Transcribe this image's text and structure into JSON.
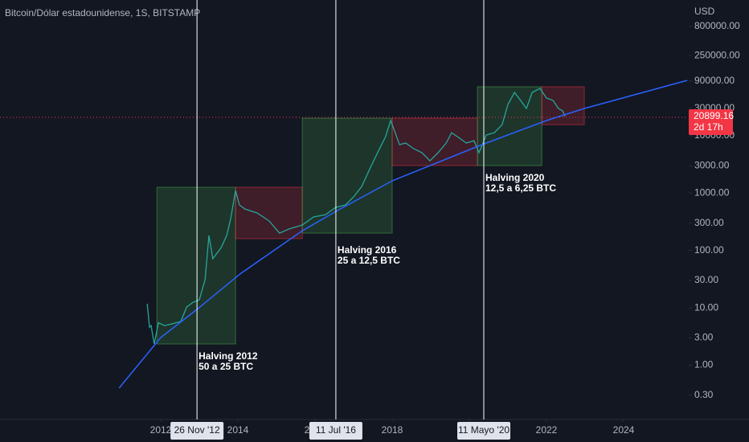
{
  "chart_data": {
    "type": "line",
    "title": "Bitcoin/Dólar estadounidense, 1S, BITSTAMP",
    "y_axis_label": "USD",
    "log_scale": true,
    "xlim": [
      2007.833,
      2025.646
    ],
    "ylim": [
      0.121,
      2320000
    ],
    "xticks": [
      2012,
      2014,
      2016,
      2018,
      2020,
      2022,
      2024
    ],
    "yticks": [
      {
        "value": 800000,
        "label": "800000.00"
      },
      {
        "value": 250000,
        "label": "250000.00"
      },
      {
        "value": 90000,
        "label": "90000.00"
      },
      {
        "value": 30000,
        "label": "30000.00"
      },
      {
        "value": 10000,
        "label": "10000.00"
      },
      {
        "value": 3000,
        "label": "3000.00"
      },
      {
        "value": 1000,
        "label": "1000.00"
      },
      {
        "value": 300,
        "label": "300.00"
      },
      {
        "value": 100,
        "label": "100.00"
      },
      {
        "value": 30,
        "label": "30.00"
      },
      {
        "value": 10,
        "label": "10.00"
      },
      {
        "value": 3,
        "label": "3.00"
      },
      {
        "value": 1,
        "label": "1.00"
      },
      {
        "value": 0.3,
        "label": "0.30"
      }
    ],
    "series": [
      {
        "color": "#26a69a",
        "x": [
          2011.65,
          2011.71,
          2011.75,
          2011.83,
          2011.94,
          2012.1,
          2012.31,
          2012.52,
          2012.67,
          2012.83,
          2013.0,
          2013.15,
          2013.25,
          2013.35,
          2013.56,
          2013.71,
          2013.81,
          2013.94,
          2014.04,
          2014.19,
          2014.5,
          2014.81,
          2015.08,
          2015.33,
          2015.67,
          2015.96,
          2016.27,
          2016.54,
          2016.79,
          2017.0,
          2017.21,
          2017.42,
          2017.62,
          2017.83,
          2017.96,
          2018.04,
          2018.19,
          2018.35,
          2018.56,
          2018.77,
          2018.98,
          2019.19,
          2019.4,
          2019.54,
          2019.75,
          2019.92,
          2020.12,
          2020.25,
          2020.44,
          2020.65,
          2020.85,
          2021.0,
          2021.17,
          2021.33,
          2021.48,
          2021.63,
          2021.83,
          2022.0,
          2022.17,
          2022.31,
          2022.42,
          2022.48
        ],
        "values": [
          11.8,
          4.6,
          4.9,
          2.35,
          5.5,
          4.9,
          5.3,
          5.8,
          10.3,
          12.4,
          13.8,
          31,
          183,
          72,
          110,
          183,
          350,
          1110,
          622,
          525,
          451,
          327,
          201,
          237,
          278,
          384,
          420,
          565,
          622,
          859,
          1306,
          2650,
          5060,
          9640,
          18400,
          13300,
          6980,
          7450,
          5940,
          5060,
          3660,
          5060,
          7450,
          11300,
          9040,
          7450,
          8200,
          5060,
          10300,
          11300,
          15600,
          35000,
          56900,
          41200,
          29800,
          56900,
          66800,
          45400,
          41200,
          29800,
          27000,
          21600
        ]
      },
      {
        "color": "#2962ff",
        "x": [
          2010.92,
          2012.0,
          2012.94,
          2014.08,
          2015.67,
          2016.58,
          2018.0,
          2020.33,
          2022.0,
          2022.98,
          2025.65
        ],
        "values": [
          0.4,
          3.04,
          9.4,
          40,
          221,
          497,
          1640,
          6980,
          18400,
          29800,
          92300
        ]
      }
    ],
    "boxes": [
      {
        "x": [
          2011.9,
          2013.94
        ],
        "y": [
          2.35,
          1265
        ],
        "color": "#4caf50"
      },
      {
        "x": [
          2013.94,
          2015.67
        ],
        "y": [
          161,
          1265
        ],
        "color": "#f23645"
      },
      {
        "x": [
          2015.67,
          2018.0
        ],
        "y": [
          201,
          20200
        ],
        "color": "#4caf50"
      },
      {
        "x": [
          2018.0,
          2020.21
        ],
        "y": [
          3020,
          20200
        ],
        "color": "#f23645"
      },
      {
        "x": [
          2020.21,
          2021.88
        ],
        "y": [
          3020,
          71300
        ],
        "color": "#4caf50"
      },
      {
        "x": [
          2021.88,
          2022.98
        ],
        "y": [
          15600,
          71300
        ],
        "color": "#f23645"
      }
    ],
    "halvings": [
      {
        "x": 2012.94,
        "date_label": "26 Nov '12",
        "title": "Halving 2012",
        "subtitle": "50 a 25 BTC"
      },
      {
        "x": 2016.54,
        "date_label": "11 Jul '16",
        "title": "Halving 2016",
        "subtitle": "25 a 12,5 BTC"
      },
      {
        "x": 2020.375,
        "date_label": "11 Mayo '20",
        "title": "Halving 2020",
        "subtitle": "12,5 a 6,25 BTC"
      }
    ],
    "current_price": {
      "value": 20899.16,
      "label": "20899.16",
      "countdown": "2d 17h",
      "color": "#f23645"
    }
  }
}
